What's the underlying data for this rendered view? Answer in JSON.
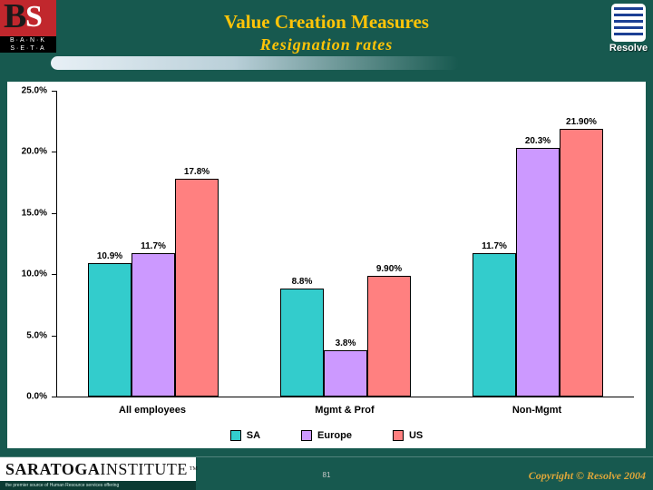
{
  "colors": {
    "background": "#17594F",
    "title_gold": "#FFC408",
    "bar_sa": "#33CCCC",
    "bar_europe": "#CC99FF",
    "bar_us": "#FF8080",
    "copyright_gold": "#DDA63A"
  },
  "header": {
    "title_line1": "Value Creation Measures",
    "title_line2": "Resignation rates"
  },
  "logos": {
    "bank_seta": {
      "b": "B",
      "s": "S",
      "line1": "B·A·N·K",
      "line2": "S·E·T·A"
    },
    "resolve": {
      "label": "Resolve"
    },
    "saratoga": {
      "part1": "SARATOGA",
      "part2": "INSTITUTE",
      "tm": "TM",
      "tagline": "the premier source of Human Resource services offering"
    }
  },
  "footer": {
    "page_number": "81",
    "copyright": "Copyright © Resolve 2004"
  },
  "chart_data": {
    "type": "bar",
    "title": "",
    "xlabel": "",
    "ylabel": "",
    "categories": [
      "All employees",
      "Mgmt & Prof",
      "Non-Mgmt"
    ],
    "series": [
      {
        "name": "SA",
        "color": "#33CCCC",
        "values": [
          10.9,
          8.8,
          11.7
        ],
        "labels": [
          "10.9%",
          "8.8%",
          "11.7%"
        ]
      },
      {
        "name": "Europe",
        "color": "#CC99FF",
        "values": [
          11.7,
          3.8,
          20.3
        ],
        "labels": [
          "11.7%",
          "3.8%",
          "20.3%"
        ]
      },
      {
        "name": "US",
        "color": "#FF8080",
        "values": [
          17.8,
          9.9,
          21.9
        ],
        "labels": [
          "17.8%",
          "9.90%",
          "21.90%"
        ]
      }
    ],
    "ylim": [
      0,
      25
    ],
    "ytick_labels": [
      "25.0%",
      "20.0%",
      "15.0%",
      "10.0%",
      "5.0%",
      "0.0%"
    ],
    "grid": false,
    "legend_position": "bottom",
    "legend_labels": [
      "SA",
      "Europe",
      "US"
    ]
  }
}
